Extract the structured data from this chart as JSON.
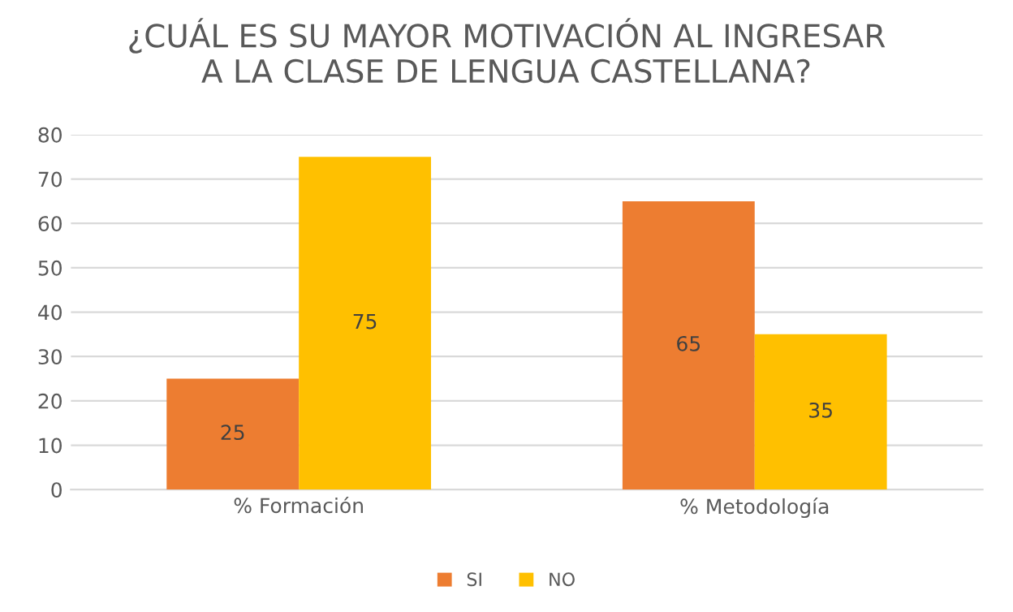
{
  "chart_data": {
    "type": "bar",
    "title": "¿CUÁL ES SU MAYOR MOTIVACIÓN AL INGRESAR\nA LA CLASE DE LENGUA CASTELLANA?",
    "categories": [
      "% Formación",
      "% Metodología"
    ],
    "series": [
      {
        "name": "SI",
        "color": "#ed7d31",
        "values": [
          25,
          65
        ]
      },
      {
        "name": "NO",
        "color": "#ffc000",
        "values": [
          75,
          35
        ]
      }
    ],
    "ylim": [
      0,
      80
    ],
    "yticks": [
      0,
      10,
      20,
      30,
      40,
      50,
      60,
      70,
      80
    ],
    "grid": "y",
    "legend": "bottom",
    "data_labels": true
  }
}
